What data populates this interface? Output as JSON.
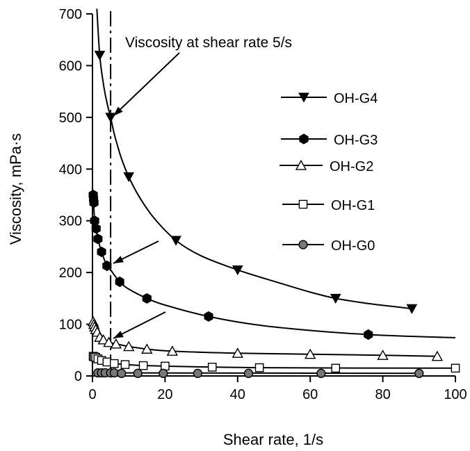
{
  "chart_data": {
    "type": "line",
    "title": "",
    "xlabel": "Shear rate, 1/s",
    "ylabel": "Viscosity, mPa·s",
    "xlim": [
      0,
      100
    ],
    "ylim": [
      0,
      700
    ],
    "xticks": [
      0,
      20,
      40,
      60,
      80,
      100
    ],
    "yticks": [
      0,
      100,
      200,
      300,
      400,
      500,
      600,
      700
    ],
    "grid": false,
    "legend_position": "right",
    "annotation": {
      "text": "Viscosity at shear rate 5/s",
      "reference_x": 5
    },
    "arrows": [
      {
        "to": [
          5,
          500
        ]
      },
      {
        "to": [
          5,
          215
        ]
      },
      {
        "to": [
          5,
          70
        ]
      }
    ],
    "series": [
      {
        "name": "OH-G4",
        "marker": "triangle-down-filled",
        "points": [
          [
            2,
            620
          ],
          [
            5,
            500
          ],
          [
            10,
            385
          ],
          [
            23,
            262
          ],
          [
            40,
            205
          ],
          [
            67,
            150
          ],
          [
            88,
            130
          ]
        ],
        "curve_x": [
          1.2,
          2,
          3,
          4,
          5,
          6,
          7,
          8,
          10,
          13,
          17,
          23,
          30,
          40,
          50,
          60,
          67,
          75,
          82,
          88
        ],
        "curve_y": [
          710,
          620,
          565,
          528,
          500,
          468,
          443,
          420,
          385,
          345,
          305,
          262,
          232,
          205,
          183,
          162,
          150,
          141,
          135,
          130
        ]
      },
      {
        "name": "OH-G3",
        "marker": "hexagon-filled",
        "points": [
          [
            0.2,
            350
          ],
          [
            0.3,
            342
          ],
          [
            0.4,
            335
          ],
          [
            0.6,
            300
          ],
          [
            1,
            285
          ],
          [
            1.5,
            265
          ],
          [
            2.5,
            240
          ],
          [
            4,
            213
          ],
          [
            7.5,
            182
          ],
          [
            15,
            150
          ],
          [
            32,
            115
          ],
          [
            76,
            80
          ]
        ],
        "curve_x": [
          0.2,
          0.6,
          1,
          1.5,
          2.5,
          4,
          5,
          7.5,
          10,
          15,
          20,
          32,
          45,
          60,
          76,
          90,
          100
        ],
        "curve_y": [
          350,
          300,
          285,
          265,
          240,
          213,
          205,
          182,
          168,
          150,
          137,
          115,
          99,
          88,
          80,
          76,
          74
        ]
      },
      {
        "name": "OH-G2",
        "marker": "triangle-up-open",
        "points": [
          [
            0.2,
            105
          ],
          [
            0.4,
            100
          ],
          [
            0.6,
            95
          ],
          [
            0.9,
            90
          ],
          [
            1.3,
            85
          ],
          [
            2,
            75
          ],
          [
            3,
            70
          ],
          [
            4.5,
            65
          ],
          [
            6.5,
            62
          ],
          [
            10,
            57
          ],
          [
            15,
            52
          ],
          [
            22,
            48
          ],
          [
            40,
            44
          ],
          [
            60,
            42
          ],
          [
            80,
            40
          ],
          [
            95,
            38
          ]
        ],
        "curve_x": [
          0.2,
          0.6,
          1.3,
          2,
          3,
          4.5,
          6.5,
          10,
          15,
          22,
          40,
          60,
          80,
          95
        ],
        "curve_y": [
          105,
          95,
          85,
          75,
          70,
          65,
          62,
          57,
          52,
          48,
          44,
          42,
          40,
          38
        ]
      },
      {
        "name": "OH-G1",
        "marker": "square-open",
        "points": [
          [
            0.2,
            38
          ],
          [
            0.5,
            37
          ],
          [
            0.9,
            36
          ],
          [
            1.5,
            33
          ],
          [
            2.5,
            30
          ],
          [
            4,
            27
          ],
          [
            6,
            24
          ],
          [
            9,
            22
          ],
          [
            14,
            20
          ],
          [
            20,
            19
          ],
          [
            33,
            17
          ],
          [
            46,
            16
          ],
          [
            67,
            15
          ],
          [
            100,
            15
          ]
        ],
        "curve_x": [
          0.2,
          1.5,
          4,
          9,
          20,
          46,
          100
        ],
        "curve_y": [
          38,
          33,
          27,
          22,
          19,
          16,
          15
        ]
      },
      {
        "name": "OH-G0",
        "marker": "circle-filled-gray",
        "points": [
          [
            1.5,
            6
          ],
          [
            2.5,
            6
          ],
          [
            3.5,
            6
          ],
          [
            5,
            6
          ],
          [
            6,
            6
          ],
          [
            8,
            5
          ],
          [
            12.5,
            5
          ],
          [
            19.5,
            5
          ],
          [
            29,
            5
          ],
          [
            43,
            5
          ],
          [
            63,
            5
          ],
          [
            90,
            5
          ]
        ],
        "curve_x": [
          1.5,
          90
        ],
        "curve_y": [
          6,
          5
        ]
      }
    ]
  }
}
